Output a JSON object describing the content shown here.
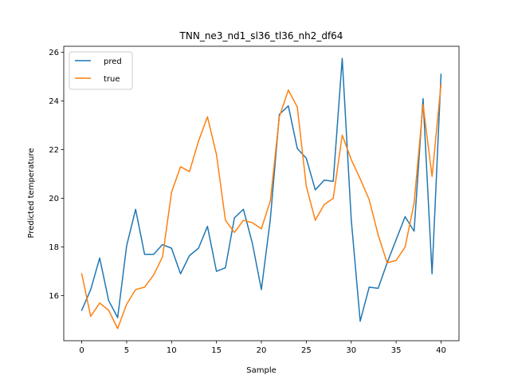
{
  "chart_data": {
    "type": "line",
    "title": "TNN_ne3_nd1_sl36_tl36_nh2_df64",
    "xlabel": "Sample",
    "ylabel": "Predicted temperature",
    "xlim": [
      -2,
      42
    ],
    "ylim": [
      14.15,
      26.25
    ],
    "xticks": [
      0,
      5,
      10,
      15,
      20,
      25,
      30,
      35,
      40
    ],
    "yticks": [
      16,
      18,
      20,
      22,
      24,
      26
    ],
    "grid": false,
    "legend_position": "upper-left",
    "x": [
      0,
      1,
      2,
      3,
      4,
      5,
      6,
      7,
      8,
      9,
      10,
      11,
      12,
      13,
      14,
      15,
      16,
      17,
      18,
      19,
      20,
      21,
      22,
      23,
      24,
      25,
      26,
      27,
      28,
      29,
      30,
      31,
      32,
      33,
      34,
      35,
      36,
      37,
      38,
      39,
      40
    ],
    "series": [
      {
        "name": "pred",
        "color": "#1f77b4",
        "values": [
          15.4,
          16.25,
          17.55,
          15.8,
          15.1,
          18.05,
          19.55,
          17.7,
          17.7,
          18.1,
          17.95,
          16.9,
          17.65,
          17.95,
          18.85,
          17.0,
          17.15,
          19.2,
          19.55,
          18.15,
          16.25,
          19.15,
          23.45,
          23.8,
          22.05,
          21.65,
          20.35,
          20.75,
          20.7,
          25.75,
          19.15,
          14.95,
          16.35,
          16.3,
          17.35,
          18.3,
          19.25,
          18.65,
          24.1,
          16.9,
          25.1
        ]
      },
      {
        "name": "true",
        "color": "#ff7f0e",
        "values": [
          16.9,
          15.15,
          15.7,
          15.4,
          14.65,
          15.65,
          16.25,
          16.35,
          16.85,
          17.6,
          20.25,
          21.3,
          21.1,
          22.35,
          23.35,
          21.8,
          19.1,
          18.6,
          19.1,
          19.0,
          18.75,
          19.9,
          23.35,
          24.45,
          23.75,
          20.5,
          19.1,
          19.75,
          20.0,
          22.6,
          21.6,
          20.8,
          19.95,
          18.5,
          17.35,
          17.45,
          18.0,
          19.8,
          23.85,
          20.9,
          24.7
        ]
      }
    ]
  }
}
